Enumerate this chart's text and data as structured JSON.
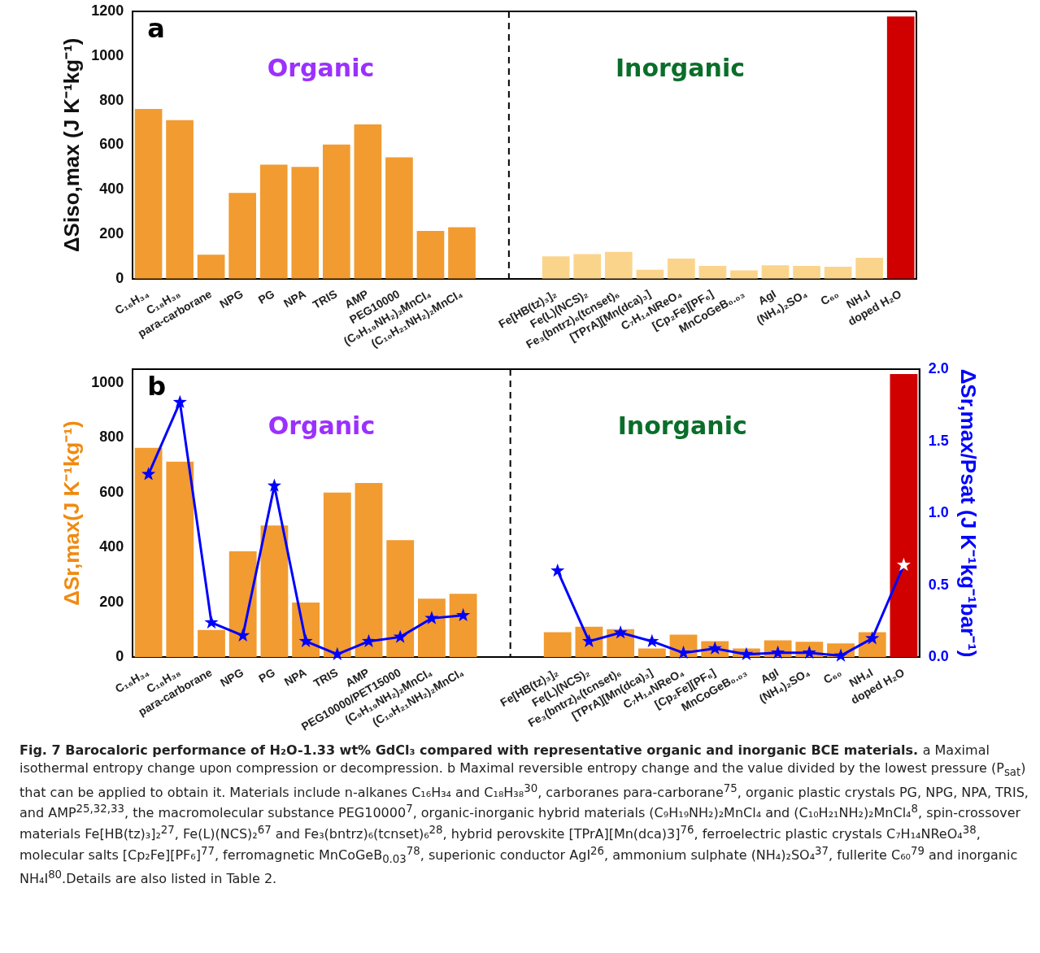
{
  "chart_data": [
    {
      "type": "bar",
      "title": "a",
      "ylabel": "ΔSiso,max (J K⁻¹kg⁻¹)",
      "categories": [
        "C₁₆H₃₄",
        "C₁₈H₃₈",
        "para-carborane",
        "NPG",
        "PG",
        "NPA",
        "TRIS",
        "AMP",
        "PEG10000",
        "(C₉H₁₉NH₂)₂MnCl₄",
        "(C₁₀H₂₁NH₂)₂MnCl₄",
        null,
        null,
        "Fe[HB(tz)₃]₂",
        "Fe(L)(NCS)₂",
        "Fe₃(bntrz)₆(tcnset)₆",
        "[TPrA][Mn(dca)₃]",
        "C₇H₁₄NReO₄",
        "[Cp₂Fe][PF₆]",
        "MnCoGeB₀.₀₃",
        "AgI",
        "(NH₄)₂SO₄",
        "C₆₀",
        "NH₄I",
        "doped H₂O"
      ],
      "series": [
        {
          "color": "#f29b30",
          "colors": [
            "#f29b30",
            "#f29b30",
            "#f29b30",
            "#f29b30",
            "#f29b30",
            "#f29b30",
            "#f29b30",
            "#f29b30",
            "#f29b30",
            "#f29b30",
            "#f29b30",
            null,
            null,
            "#fbd48c",
            "#fbd48c",
            "#fbd48c",
            "#fbd48c",
            "#fbd48c",
            "#fbd48c",
            "#fbd48c",
            "#fbd48c",
            "#fbd48c",
            "#fbd48c",
            "#fbd48c",
            "#d00000"
          ],
          "values": [
            762,
            712,
            107,
            385,
            512,
            502,
            602,
            692,
            545,
            214,
            231,
            null,
            null,
            100,
            110,
            120,
            40,
            90,
            57,
            37,
            60,
            57,
            53,
            94,
            1177
          ]
        }
      ],
      "ylim": [
        0,
        1200
      ],
      "yticks": [
        0,
        200,
        400,
        600,
        800,
        1000,
        1200
      ],
      "annotations": [
        "Organic",
        "Inorganic"
      ]
    },
    {
      "type": "bar",
      "title": "b",
      "ylabel": "ΔSr,max(J K⁻¹kg⁻¹)",
      "y2label": "ΔSr,max/Psat (J K⁻¹kg⁻¹bar⁻¹)",
      "categories": [
        "C₁₆H₃₄",
        "C₁₈H₃₈",
        "para-carborane",
        "NPG",
        "PG",
        "NPA",
        "TRIS",
        "AMP",
        "PEG10000/PET15000",
        "(C₉H₁₉NH₂)₂MnCl₄",
        "(C₁₀H₂₁NH₂)₂MnCl₄",
        null,
        null,
        "Fe[HB(tz)₃]₂",
        "Fe(L)(NCS)₂",
        "Fe₃(bntrz)₆(tcnset)₆",
        "[TPrA][Mn(dca)₃]",
        "C₇H₁₄NReO₄",
        "[Cp₂Fe][PF₆]",
        "MnCoGeB₀.₀₃",
        "AgI",
        "(NH₄)₂SO₄",
        "C₆₀",
        "NH₄I",
        "doped H₂O"
      ],
      "series": [
        {
          "color": "#f29b30",
          "colors": [
            "#f29b30",
            "#f29b30",
            "#f29b30",
            "#f29b30",
            "#f29b30",
            "#f29b30",
            "#f29b30",
            "#f29b30",
            "#f29b30",
            "#f29b30",
            "#f29b30",
            null,
            null,
            "#f29b30",
            "#f29b30",
            "#f29b30",
            "#f29b30",
            "#f29b30",
            "#f29b30",
            "#f29b30",
            "#f29b30",
            "#f29b30",
            "#f29b30",
            "#f29b30",
            "#d00000"
          ],
          "values": [
            763,
            713,
            99,
            386,
            480,
            199,
            600,
            635,
            427,
            213,
            231,
            null,
            null,
            91,
            111,
            102,
            32,
            82,
            58,
            32,
            61,
            56,
            50,
            91,
            1032
          ]
        },
        {
          "type": "line",
          "axis": "y2",
          "color": "#0000ff",
          "colors": [
            "#0000ff",
            "#0000ff",
            "#0000ff",
            "#0000ff",
            "#0000ff",
            "#0000ff",
            "#0000ff",
            "#0000ff",
            "#0000ff",
            "#0000ff",
            "#0000ff",
            null,
            null,
            "#0000ff",
            "#0000ff",
            "#0000ff",
            "#0000ff",
            "#0000ff",
            "#0000ff",
            "#0000ff",
            "#0000ff",
            "#0000ff",
            "#0000ff",
            "#0000ff",
            "#ffffff"
          ],
          "values": [
            1.27,
            1.77,
            0.24,
            0.15,
            1.19,
            0.11,
            0.02,
            0.11,
            0.14,
            0.27,
            0.29,
            null,
            null,
            0.6,
            0.11,
            0.17,
            0.11,
            0.03,
            0.06,
            0.02,
            0.03,
            0.03,
            0.01,
            0.13,
            0.64
          ]
        }
      ],
      "marker": "star",
      "ylim": [
        0,
        1050
      ],
      "yticks": [
        0,
        200,
        400,
        600,
        800,
        1000
      ],
      "y2lim": [
        0,
        2
      ],
      "y2ticks": [
        {
          "value": 0,
          "label": "0.0"
        },
        {
          "value": 0.5,
          "label": "0.5"
        },
        {
          "value": 1,
          "label": "1.0"
        },
        {
          "value": 1.5,
          "label": "1.5"
        },
        {
          "value": 2,
          "label": "2.0"
        }
      ],
      "annotations": [
        "Organic",
        "Inorganic",
        "Fig. 7 Barocaloric performance of H₂O-1.33 wt% GdCl₃ compared with representative organic and inorganic BCE materials.",
        "a Maximal isothermal entropy change upon compression or decompression. b Maximal reversible entropy change and the value divided by the lowest pressure (P$_{sat}$) that can be applied to obtain it. Materials include n-alkanes C₁₆H₃₄ and C₁₈H₃₈$^{30}$, carboranes para-carborane$^{75}$, organic plastic crystals PG, NPG, NPA, TRIS, and AMP$^{25,32,33}$, the macromolecular substance PEG10000$^{7}$, organic-inorganic hybrid materials (C₉H₁₉NH₂)₂MnCl₄ and (C₁₀H₂₁NH₂)₂MnCl₄$^{8}$, spin-crossover materials Fe[HB(tz)₃]₂$^{27}$, Fe(L)(NCS)₂$^{67}$ and Fe₃(bntrz)₆(tcnset)₆$^{28}$, hybrid perovskite [TPrA][Mn(dca)3]$^{76}$, ferroelectric plastic crystals C₇H₁₄NReO₄$^{38}$, molecular salts [Cp₂Fe][PF₆]$^{77}$, ferromagnetic MnCoGeB$_{0.03}$$^{78}$, superionic conductor AgI$^{26}$, ammonium sulphate (NH₄)₂SO₄$^{37}$, fullerite C₆₀$^{79}$ and inorganic NH₄I$^{80}$.Details are also listed in Table 2."
      ]
    }
  ]
}
